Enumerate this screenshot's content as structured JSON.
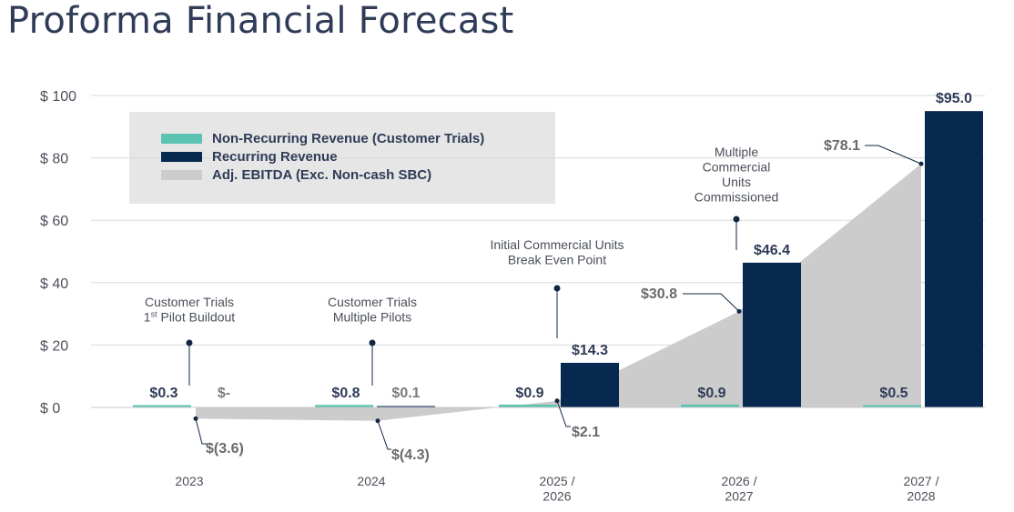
{
  "page": {
    "title": "Proforma Financial Forecast"
  },
  "chart_data": {
    "type": "bar",
    "categories": [
      [
        "2023"
      ],
      [
        "2024"
      ],
      [
        "2025 /",
        "2026"
      ],
      [
        "2026 /",
        "2027"
      ],
      [
        "2027 /",
        "2028"
      ]
    ],
    "ylim": [
      -10,
      100
    ],
    "yticks": [
      0,
      20,
      40,
      60,
      80,
      100
    ],
    "ytick_labels": [
      "$   0",
      "$  20",
      "$  40",
      "$  60",
      "$  80",
      "$ 100"
    ],
    "grid": true,
    "legend_placement": "top-left",
    "legend": [
      {
        "name": "Non-Recurring Revenue (Customer Trials)",
        "color": "#5cc3b3",
        "kind": "bar"
      },
      {
        "name": "Recurring Revenue",
        "color": "#07294f",
        "kind": "bar"
      },
      {
        "name": "Adj. EBITDA (Exc. Non-cash SBC)",
        "color": "#cccccc",
        "kind": "area"
      }
    ],
    "series": [
      {
        "name": "Non-Recurring Revenue (Customer Trials)",
        "color": "#5cc3b3",
        "values": [
          0.3,
          0.8,
          0.9,
          0.9,
          0.5
        ],
        "labels": [
          "$0.3",
          "$0.8",
          "$0.9",
          "$0.9",
          "$0.5"
        ]
      },
      {
        "name": "Recurring Revenue",
        "color": "#07294f",
        "values": [
          0,
          0.1,
          14.3,
          46.4,
          95.0
        ],
        "labels": [
          "$-",
          "$0.1",
          "$14.3",
          "$46.4",
          "$95.0"
        ]
      },
      {
        "name": "Adj. EBITDA (Exc. Non-cash SBC)",
        "color": "#cccccc",
        "values": [
          -3.6,
          -4.3,
          2.1,
          30.8,
          78.1
        ],
        "labels": [
          "$(3.6)",
          "$(4.3)",
          "$2.1",
          "$30.8",
          "$78.1"
        ]
      }
    ],
    "annotations": [
      {
        "category": 0,
        "lines": [
          "Customer Trials",
          "1st Pilot Buildout"
        ]
      },
      {
        "category": 1,
        "lines": [
          "Customer Trials",
          "Multiple Pilots"
        ]
      },
      {
        "category": 2,
        "lines": [
          "Initial Commercial Units",
          "Break Even Point"
        ]
      },
      {
        "category": 3,
        "lines": [
          "Multiple",
          "Commercial",
          "Units",
          "Commissioned"
        ]
      }
    ]
  }
}
